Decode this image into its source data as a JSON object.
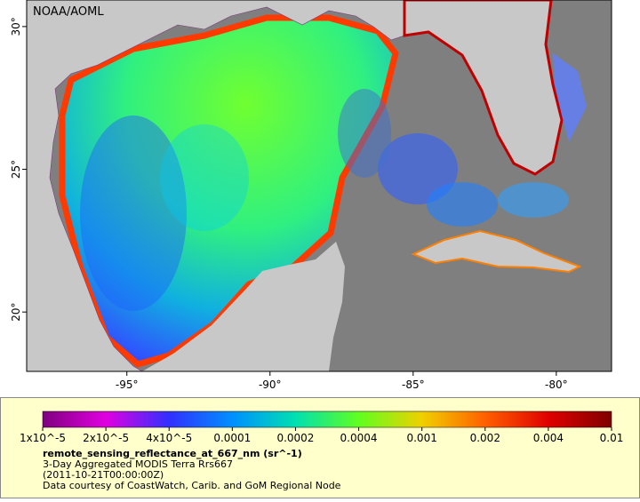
{
  "chart_data": {
    "type": "map",
    "credit": "NOAA/AOML",
    "xlim": [
      -98.5,
      -78.07
    ],
    "ylim": [
      17.92,
      30.93
    ],
    "xticks": [
      {
        "value": -95,
        "label": "-95°"
      },
      {
        "value": -90,
        "label": "-90°"
      },
      {
        "value": -85,
        "label": "-85°"
      },
      {
        "value": -80,
        "label": "-80°"
      }
    ],
    "yticks": [
      {
        "value": 20,
        "label": "20°"
      },
      {
        "value": 25,
        "label": "25°"
      },
      {
        "value": 30,
        "label": "30°"
      }
    ],
    "colorbar": {
      "label": "remote_sensing_reflectance_at_667_nm (sr^-1)",
      "ticks": [
        {
          "value": 1e-05,
          "label": "1x10^-5"
        },
        {
          "value": 2e-05,
          "label": "2x10^-5"
        },
        {
          "value": 4e-05,
          "label": "4x10^-5"
        },
        0.0001,
        0.0002,
        0.0004,
        0.001,
        0.002,
        0.004,
        0.01
      ],
      "colors": [
        "#7f007f",
        "#e000e0",
        "#3030ff",
        "#0090ff",
        "#00e0b0",
        "#60ff20",
        "#f0d000",
        "#ff6000",
        "#e00000",
        "#7f0000"
      ]
    },
    "caption": [
      "3-Day Aggregated MODIS Terra Rrs667",
      "(2011-10-21T00:00:00Z)",
      "Data courtesy of CoastWatch, Carib. and GoM Regional Node"
    ]
  }
}
